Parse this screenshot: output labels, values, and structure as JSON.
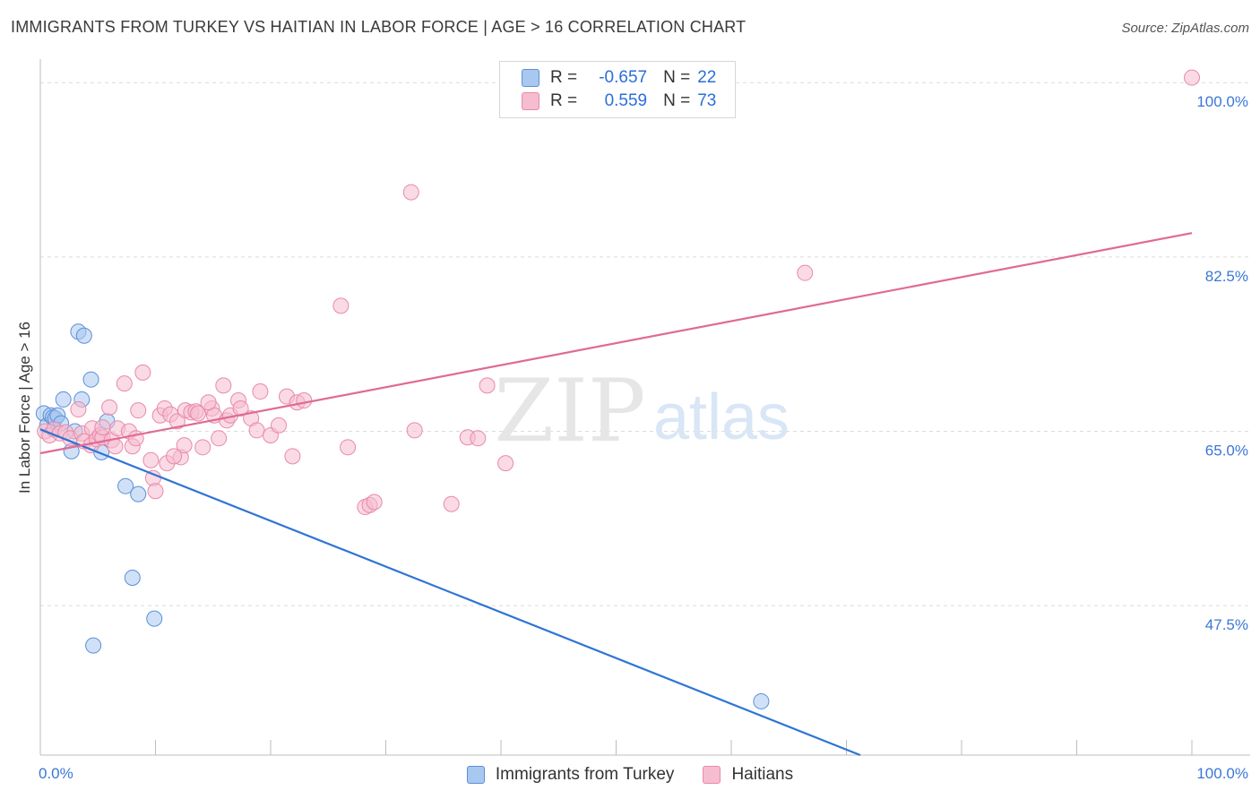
{
  "header": {
    "title": "IMMIGRANTS FROM TURKEY VS HAITIAN IN LABOR FORCE | AGE > 16 CORRELATION CHART",
    "source": "Source: ZipAtlas.com"
  },
  "watermark": {
    "zip": "ZIP",
    "atlas": "atlas"
  },
  "legend": {
    "rows": [
      {
        "r_label": "R =",
        "r_value": "-0.657",
        "n_label": "N =",
        "n_value": "22"
      },
      {
        "r_label": "R =",
        "r_value": "0.559",
        "n_label": "N =",
        "n_value": "73"
      }
    ]
  },
  "colors": {
    "turkey_fill": "#a9c8f0",
    "turkey_stroke": "#5b8fd8",
    "turkey_line": "#2f74d6",
    "haiti_fill": "#f6bcd0",
    "haiti_stroke": "#e88aa8",
    "haiti_line": "#e06a93",
    "tick_label": "#3a78d4",
    "grid": "#dcdcdc"
  },
  "chart_data": {
    "type": "scatter",
    "title": "IMMIGRANTS FROM TURKEY VS HAITIAN IN LABOR FORCE | AGE > 16 CORRELATION CHART",
    "xlabel": "",
    "ylabel": "In Labor Force | Age > 16",
    "xlim": [
      0,
      100
    ],
    "ylim": [
      32.5,
      102
    ],
    "x_tick_labels": [
      "0.0%",
      "100.0%"
    ],
    "y_ticks": [
      47.5,
      65.0,
      82.5,
      100.0
    ],
    "y_tick_labels": [
      "47.5%",
      "65.0%",
      "82.5%",
      "100.0%"
    ],
    "grid": true,
    "legend_position": "bottom",
    "series": [
      {
        "name": "Immigrants from Turkey",
        "points": [
          [
            0.3,
            66.8
          ],
          [
            0.6,
            65.6
          ],
          [
            0.9,
            66.6
          ],
          [
            1.1,
            66.4
          ],
          [
            1.3,
            66.3
          ],
          [
            1.5,
            66.6
          ],
          [
            1.8,
            65.8
          ],
          [
            2.0,
            68.2
          ],
          [
            2.7,
            63.0
          ],
          [
            3.0,
            65.0
          ],
          [
            3.3,
            75.0
          ],
          [
            3.6,
            68.2
          ],
          [
            3.8,
            74.6
          ],
          [
            4.4,
            70.2
          ],
          [
            4.6,
            43.5
          ],
          [
            5.3,
            62.9
          ],
          [
            5.8,
            66.0
          ],
          [
            7.4,
            59.5
          ],
          [
            8.5,
            58.7
          ],
          [
            8.0,
            50.3
          ],
          [
            9.9,
            46.2
          ],
          [
            62.6,
            37.9
          ]
        ],
        "trend": [
          [
            0,
            65.2
          ],
          [
            71.2,
            32.5
          ]
        ]
      },
      {
        "name": "Haitians",
        "points": [
          [
            0.4,
            65.0
          ],
          [
            0.8,
            64.6
          ],
          [
            1.2,
            65.2
          ],
          [
            1.7,
            64.8
          ],
          [
            2.2,
            64.9
          ],
          [
            2.6,
            64.3
          ],
          [
            3.3,
            67.2
          ],
          [
            3.6,
            64.8
          ],
          [
            3.8,
            64.0
          ],
          [
            4.4,
            63.6
          ],
          [
            4.5,
            65.3
          ],
          [
            4.9,
            64.2
          ],
          [
            5.2,
            64.6
          ],
          [
            5.4,
            64.4
          ],
          [
            6.0,
            67.4
          ],
          [
            6.2,
            64.1
          ],
          [
            6.5,
            63.5
          ],
          [
            6.7,
            65.3
          ],
          [
            7.3,
            69.8
          ],
          [
            7.7,
            65.0
          ],
          [
            8.0,
            63.5
          ],
          [
            8.3,
            64.3
          ],
          [
            8.5,
            67.1
          ],
          [
            8.9,
            70.9
          ],
          [
            9.6,
            62.1
          ],
          [
            9.8,
            60.3
          ],
          [
            10.0,
            59.0
          ],
          [
            10.4,
            66.6
          ],
          [
            10.8,
            67.3
          ],
          [
            11.0,
            61.8
          ],
          [
            11.3,
            66.7
          ],
          [
            11.9,
            66.0
          ],
          [
            12.2,
            62.4
          ],
          [
            12.5,
            63.6
          ],
          [
            12.6,
            67.1
          ],
          [
            13.1,
            66.9
          ],
          [
            13.5,
            67.0
          ],
          [
            13.7,
            66.8
          ],
          [
            14.1,
            63.4
          ],
          [
            14.9,
            67.3
          ],
          [
            15.1,
            66.6
          ],
          [
            15.5,
            64.3
          ],
          [
            15.9,
            69.6
          ],
          [
            16.2,
            66.1
          ],
          [
            16.5,
            66.6
          ],
          [
            17.2,
            68.1
          ],
          [
            17.4,
            67.3
          ],
          [
            18.3,
            66.3
          ],
          [
            18.8,
            65.1
          ],
          [
            19.1,
            69.0
          ],
          [
            20.0,
            64.6
          ],
          [
            20.7,
            65.6
          ],
          [
            21.4,
            68.5
          ],
          [
            21.9,
            62.5
          ],
          [
            22.3,
            67.9
          ],
          [
            22.9,
            68.1
          ],
          [
            26.1,
            77.6
          ],
          [
            26.7,
            63.4
          ],
          [
            28.2,
            57.4
          ],
          [
            28.6,
            57.6
          ],
          [
            29.0,
            57.9
          ],
          [
            32.2,
            89.0
          ],
          [
            32.5,
            65.1
          ],
          [
            35.7,
            57.7
          ],
          [
            37.1,
            64.4
          ],
          [
            38.0,
            64.3
          ],
          [
            38.8,
            69.6
          ],
          [
            40.4,
            61.8
          ],
          [
            66.4,
            80.9
          ],
          [
            100.0,
            100.5
          ],
          [
            5.4,
            65.4
          ],
          [
            11.6,
            62.5
          ],
          [
            14.6,
            67.9
          ]
        ],
        "trend": [
          [
            0,
            62.8
          ],
          [
            100,
            84.9
          ]
        ]
      }
    ]
  },
  "bottom_legend": {
    "turkey": "Immigrants from Turkey",
    "haiti": "Haitians"
  }
}
